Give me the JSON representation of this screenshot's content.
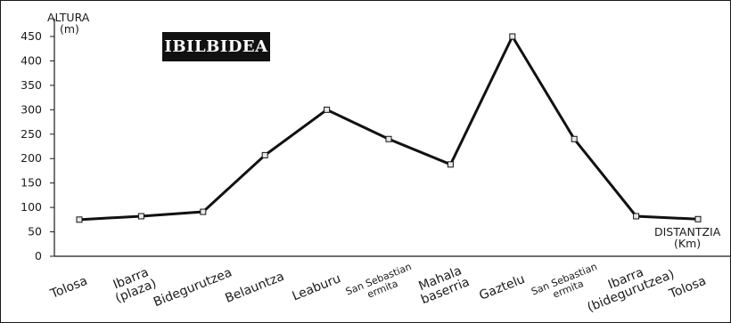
{
  "chart_data": {
    "type": "line",
    "title": "IBILBIDEA",
    "ylabel": "ALTURA",
    "yunit": "(m)",
    "xlabel": "DISTANTZIA",
    "xunit": "(Km)",
    "ylim": [
      0,
      450
    ],
    "yticks": [
      0,
      50,
      100,
      150,
      200,
      250,
      300,
      350,
      400,
      450
    ],
    "grid": false,
    "categories": [
      [
        "Tolosa"
      ],
      [
        "Ibarra",
        "(plaza)"
      ],
      [
        "Bidegurutzea"
      ],
      [
        "Belauntza"
      ],
      [
        "Leaburu"
      ],
      [
        "San Sebastian",
        "ermita"
      ],
      [
        "Mahala",
        "baserria"
      ],
      [
        "Gaztelu"
      ],
      [
        "San Sebastian",
        "ermita"
      ],
      [
        "Ibarra",
        "(bidegurutzea)"
      ],
      [
        "Tolosa"
      ]
    ],
    "values": [
      75,
      82,
      91,
      207,
      300,
      240,
      188,
      450,
      240,
      82,
      76
    ],
    "line_color": "#111111",
    "marker_fill": "#e8e8e8"
  }
}
